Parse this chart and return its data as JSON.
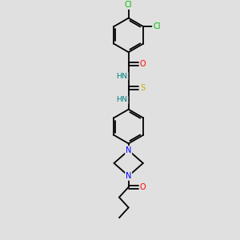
{
  "background_color": "#e0e0e0",
  "bond_color": "#000000",
  "atom_colors": {
    "Cl": "#00bb00",
    "O": "#ff0000",
    "N": "#0000ff",
    "S": "#ccaa00",
    "NH": "#008080",
    "C": "#000000"
  },
  "figsize": [
    3.0,
    3.0
  ],
  "dpi": 100,
  "xlim": [
    0,
    10
  ],
  "ylim": [
    0,
    14
  ]
}
